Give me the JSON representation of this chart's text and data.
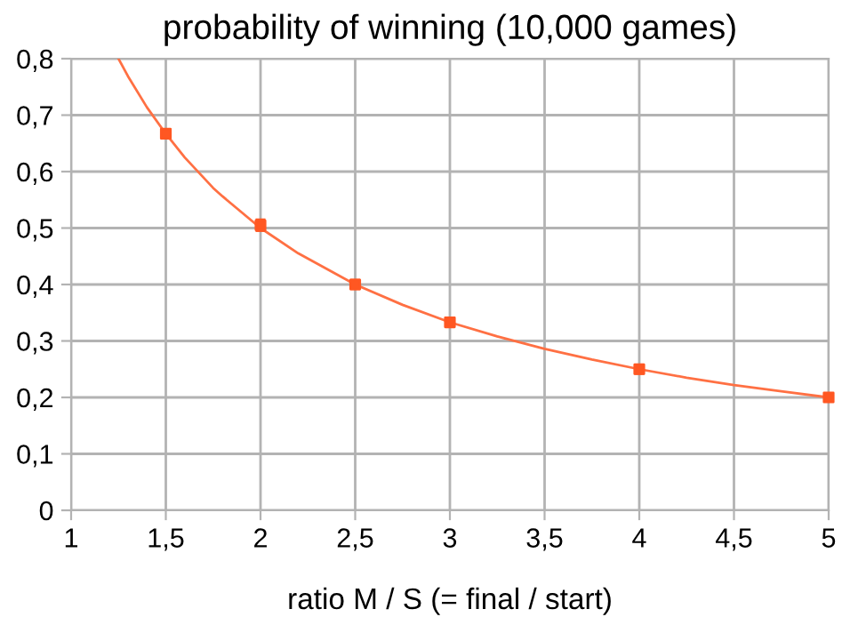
{
  "chart_data": {
    "type": "scatter",
    "title": "probability of winning (10,000 games)",
    "xlabel": "ratio M / S (= final / start)",
    "xlim": [
      1,
      5
    ],
    "xticks": [
      {
        "value": 1,
        "label": "1"
      },
      {
        "value": 1.5,
        "label": "1,5"
      },
      {
        "value": 2,
        "label": "2"
      },
      {
        "value": 2.5,
        "label": "2,5"
      },
      {
        "value": 3,
        "label": "3"
      },
      {
        "value": 3.5,
        "label": "3,5"
      },
      {
        "value": 4,
        "label": "4"
      },
      {
        "value": 4.5,
        "label": "4,5"
      },
      {
        "value": 5,
        "label": "5"
      }
    ],
    "ylim": [
      0,
      0.8
    ],
    "yticks": [
      {
        "value": 0,
        "label": "0"
      },
      {
        "value": 0.1,
        "label": "0,1"
      },
      {
        "value": 0.2,
        "label": "0,2"
      },
      {
        "value": 0.3,
        "label": "0,3"
      },
      {
        "value": 0.4,
        "label": "0,4"
      },
      {
        "value": 0.5,
        "label": "0,5"
      },
      {
        "value": 0.6,
        "label": "0,6"
      },
      {
        "value": 0.7,
        "label": "0,7"
      },
      {
        "value": 0.8,
        "label": "0,8"
      }
    ],
    "grid": true,
    "series": [
      {
        "type": "line",
        "marker": "none",
        "color": "#ff7043",
        "x": [
          1.25,
          1.3,
          1.4,
          1.5,
          1.6,
          1.75,
          1.8,
          2,
          2.2,
          2.5,
          2.75,
          3,
          3.25,
          3.5,
          3.75,
          4,
          4.25,
          4.5,
          4.75,
          5
        ],
        "values": [
          0.8,
          0.769,
          0.714,
          0.667,
          0.625,
          0.571,
          0.556,
          0.5,
          0.455,
          0.4,
          0.364,
          0.333,
          0.308,
          0.286,
          0.267,
          0.25,
          0.235,
          0.222,
          0.211,
          0.2
        ]
      },
      {
        "marker": "square",
        "color": "#ff5722",
        "x": [
          1.5,
          2,
          2.5,
          3,
          4,
          5
        ],
        "values": [
          0.667,
          0.505,
          0.4,
          0.333,
          0.25,
          0.2
        ],
        "errors": [
          0.01,
          0.012,
          0.01,
          0.01,
          0.01,
          0.008
        ]
      }
    ]
  }
}
